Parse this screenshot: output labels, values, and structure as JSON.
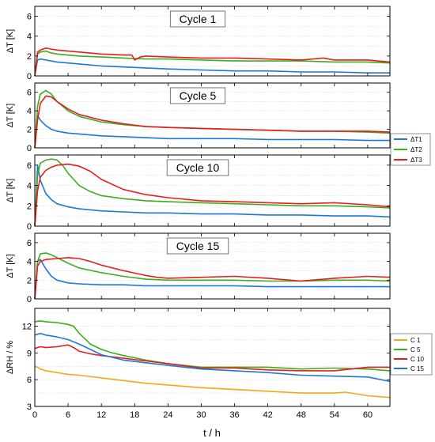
{
  "figure": {
    "xlabel": "t / h",
    "x_ticks": [
      0,
      6,
      12,
      18,
      24,
      30,
      36,
      42,
      48,
      54,
      60
    ],
    "xlim": [
      0,
      64
    ]
  },
  "chart_data": [
    {
      "type": "line",
      "title": "Cycle 1",
      "ylabel": "ΔT [K]",
      "ylim": [
        0,
        7
      ],
      "y_ticks": [
        0,
        2,
        4,
        6
      ],
      "grid": true,
      "series": [
        {
          "name": "ΔT1",
          "color": "#1f77d4",
          "x": [
            0,
            0.5,
            1,
            2,
            4,
            6,
            8,
            12,
            16,
            20,
            24,
            30,
            36,
            42,
            48,
            54,
            60,
            64
          ],
          "y": [
            0,
            1.6,
            1.7,
            1.6,
            1.4,
            1.3,
            1.2,
            1.0,
            0.9,
            0.8,
            0.7,
            0.6,
            0.5,
            0.5,
            0.4,
            0.4,
            0.3,
            0.3
          ]
        },
        {
          "name": "ΔT2",
          "color": "#3cae1c",
          "x": [
            0,
            0.5,
            1,
            2,
            3,
            4,
            6,
            8,
            12,
            16,
            20,
            24,
            30,
            36,
            42,
            48,
            54,
            60,
            64
          ],
          "y": [
            0,
            2.2,
            2.4,
            2.5,
            2.3,
            2.2,
            2.1,
            2.0,
            1.9,
            1.8,
            1.7,
            1.7,
            1.6,
            1.5,
            1.5,
            1.5,
            1.4,
            1.4,
            1.3
          ]
        },
        {
          "name": "ΔT3",
          "color": "#e81c1c",
          "x": [
            0,
            0.5,
            1,
            2,
            3,
            4,
            6,
            8,
            12,
            16,
            17.5,
            18,
            19,
            20,
            24,
            30,
            36,
            42,
            48,
            52,
            54,
            60,
            64
          ],
          "y": [
            0,
            2.4,
            2.6,
            2.8,
            2.7,
            2.6,
            2.5,
            2.4,
            2.2,
            2.1,
            2.1,
            1.6,
            1.9,
            2.0,
            1.9,
            1.8,
            1.8,
            1.7,
            1.6,
            1.8,
            1.6,
            1.6,
            1.4
          ]
        }
      ]
    },
    {
      "type": "line",
      "title": "Cycle 5",
      "ylabel": "ΔT [K]",
      "ylim": [
        0,
        7
      ],
      "y_ticks": [
        0,
        2,
        4,
        6
      ],
      "grid": true,
      "series": [
        {
          "name": "ΔT1",
          "color": "#1f77d4",
          "x": [
            0,
            0.5,
            1,
            2,
            3,
            4,
            6,
            8,
            12,
            16,
            20,
            24,
            30,
            36,
            42,
            48,
            54,
            60,
            64
          ],
          "y": [
            0,
            3.5,
            3.0,
            2.4,
            2.0,
            1.8,
            1.6,
            1.5,
            1.3,
            1.2,
            1.1,
            1.0,
            1.0,
            1.0,
            0.9,
            0.9,
            0.9,
            0.8,
            0.8
          ]
        },
        {
          "name": "ΔT2",
          "color": "#3cae1c",
          "x": [
            0,
            0.5,
            1,
            2,
            3,
            4,
            6,
            8,
            12,
            16,
            20,
            24,
            30,
            36,
            42,
            48,
            54,
            60,
            64
          ],
          "y": [
            0,
            4.5,
            5.8,
            6.2,
            5.8,
            5.0,
            4.0,
            3.4,
            2.8,
            2.5,
            2.3,
            2.2,
            2.1,
            2.0,
            1.9,
            1.8,
            1.8,
            1.7,
            1.6
          ]
        },
        {
          "name": "ΔT3",
          "color": "#e81c1c",
          "x": [
            0,
            0.5,
            1,
            2,
            3,
            4,
            6,
            8,
            12,
            16,
            20,
            24,
            30,
            36,
            42,
            48,
            54,
            60,
            64
          ],
          "y": [
            0,
            3.0,
            4.8,
            5.6,
            5.5,
            5.0,
            4.2,
            3.6,
            3.0,
            2.6,
            2.3,
            2.2,
            2.1,
            2.0,
            1.9,
            1.8,
            1.8,
            1.8,
            1.7
          ]
        }
      ]
    },
    {
      "type": "line",
      "title": "Cycle 10",
      "ylabel": "ΔT [K]",
      "ylim": [
        0,
        7
      ],
      "y_ticks": [
        0,
        2,
        4,
        6
      ],
      "grid": true,
      "series": [
        {
          "name": "ΔT1",
          "color": "#1f77d4",
          "x": [
            0,
            0.5,
            1,
            2,
            3,
            4,
            6,
            8,
            12,
            16,
            20,
            24,
            30,
            36,
            42,
            48,
            54,
            60,
            64
          ],
          "y": [
            0,
            6.0,
            4.5,
            3.2,
            2.6,
            2.2,
            1.9,
            1.7,
            1.5,
            1.4,
            1.3,
            1.3,
            1.2,
            1.2,
            1.1,
            1.1,
            1.0,
            1.0,
            0.9
          ]
        },
        {
          "name": "ΔT2",
          "color": "#3cae1c",
          "x": [
            0,
            0.5,
            1,
            2,
            3,
            4,
            5,
            6,
            8,
            10,
            12,
            16,
            20,
            24,
            30,
            36,
            42,
            48,
            54,
            60,
            64
          ],
          "y": [
            0,
            5.0,
            6.2,
            6.5,
            6.6,
            6.5,
            6.0,
            5.2,
            4.0,
            3.4,
            3.0,
            2.7,
            2.5,
            2.4,
            2.3,
            2.2,
            2.1,
            2.0,
            2.0,
            1.9,
            1.8
          ]
        },
        {
          "name": "ΔT3",
          "color": "#e81c1c",
          "x": [
            0,
            0.5,
            1,
            2,
            3,
            4,
            6,
            8,
            10,
            12,
            16,
            20,
            24,
            30,
            36,
            42,
            48,
            54,
            60,
            64
          ],
          "y": [
            0,
            3.5,
            4.8,
            5.5,
            5.8,
            6.0,
            6.1,
            5.9,
            5.4,
            4.6,
            3.6,
            3.1,
            2.8,
            2.5,
            2.4,
            2.3,
            2.2,
            2.3,
            2.1,
            1.9
          ]
        }
      ]
    },
    {
      "type": "line",
      "title": "Cycle 15",
      "ylabel": "ΔT [K]",
      "ylim": [
        0,
        7
      ],
      "y_ticks": [
        0,
        2,
        4,
        6
      ],
      "grid": true,
      "series": [
        {
          "name": "ΔT1",
          "color": "#1f77d4",
          "x": [
            0,
            0.5,
            1,
            2,
            3,
            4,
            6,
            8,
            12,
            16,
            20,
            24,
            30,
            36,
            42,
            48,
            54,
            60,
            64
          ],
          "y": [
            0,
            4.0,
            4.2,
            3.2,
            2.4,
            2.0,
            1.7,
            1.6,
            1.5,
            1.5,
            1.4,
            1.4,
            1.4,
            1.4,
            1.3,
            1.3,
            1.3,
            1.3,
            1.3
          ]
        },
        {
          "name": "ΔT2",
          "color": "#3cae1c",
          "x": [
            0,
            0.5,
            1,
            2,
            3,
            4,
            6,
            8,
            12,
            16,
            20,
            24,
            30,
            36,
            42,
            48,
            54,
            60,
            64
          ],
          "y": [
            0,
            4.0,
            4.8,
            4.9,
            4.7,
            4.4,
            3.8,
            3.3,
            2.8,
            2.4,
            2.1,
            2.0,
            2.0,
            2.0,
            1.9,
            1.9,
            2.0,
            2.0,
            1.9
          ]
        },
        {
          "name": "ΔT3",
          "color": "#e81c1c",
          "x": [
            0,
            0.5,
            1,
            2,
            4,
            6,
            8,
            10,
            12,
            16,
            20,
            22,
            24,
            30,
            36,
            42,
            48,
            54,
            60,
            64
          ],
          "y": [
            0,
            3.5,
            4.0,
            4.2,
            4.3,
            4.4,
            4.3,
            4.0,
            3.6,
            3.0,
            2.5,
            2.3,
            2.2,
            2.3,
            2.4,
            2.2,
            1.9,
            2.2,
            2.4,
            2.3
          ]
        }
      ]
    },
    {
      "type": "line",
      "title": "",
      "ylabel": "ΔRH / %",
      "ylim": [
        3,
        14
      ],
      "y_ticks": [
        3,
        6,
        9,
        12
      ],
      "grid": true,
      "series": [
        {
          "name": "C 1",
          "color": "#f2a81d",
          "x": [
            0,
            0.5,
            1,
            2,
            4,
            6,
            8,
            12,
            16,
            20,
            24,
            30,
            36,
            42,
            48,
            54,
            56,
            60,
            64
          ],
          "y": [
            7.5,
            7.4,
            7.2,
            7.0,
            6.8,
            6.6,
            6.5,
            6.2,
            5.9,
            5.6,
            5.4,
            5.1,
            4.9,
            4.7,
            4.5,
            4.5,
            4.6,
            4.2,
            4.0
          ]
        },
        {
          "name": "C 5",
          "color": "#3cae1c",
          "x": [
            0,
            1,
            2,
            4,
            6,
            7,
            8,
            10,
            12,
            14,
            16,
            20,
            24,
            30,
            36,
            42,
            48,
            54,
            60,
            64
          ],
          "y": [
            12.5,
            12.6,
            12.5,
            12.4,
            12.2,
            12.0,
            11.2,
            10.0,
            9.4,
            9.0,
            8.7,
            8.2,
            7.8,
            7.4,
            7.4,
            7.4,
            7.2,
            7.3,
            7.2,
            7.0
          ]
        },
        {
          "name": "C 10",
          "color": "#e81c1c",
          "x": [
            0,
            1,
            2,
            4,
            6,
            7,
            8,
            10,
            12,
            16,
            20,
            24,
            30,
            36,
            42,
            48,
            54,
            60,
            64
          ],
          "y": [
            9.5,
            9.7,
            9.6,
            9.7,
            9.9,
            9.6,
            9.2,
            8.9,
            8.7,
            8.4,
            8.1,
            7.8,
            7.3,
            7.3,
            7.1,
            7.0,
            7.0,
            7.4,
            7.4
          ]
        },
        {
          "name": "C 15",
          "color": "#1f77d4",
          "x": [
            0,
            1,
            2,
            4,
            6,
            8,
            10,
            12,
            16,
            20,
            24,
            30,
            36,
            42,
            48,
            54,
            60,
            64
          ],
          "y": [
            11.0,
            11.2,
            11.0,
            10.8,
            10.5,
            10.0,
            9.4,
            8.8,
            8.2,
            7.9,
            7.6,
            7.2,
            7.0,
            6.8,
            6.5,
            6.4,
            6.3,
            5.8
          ]
        }
      ]
    }
  ]
}
